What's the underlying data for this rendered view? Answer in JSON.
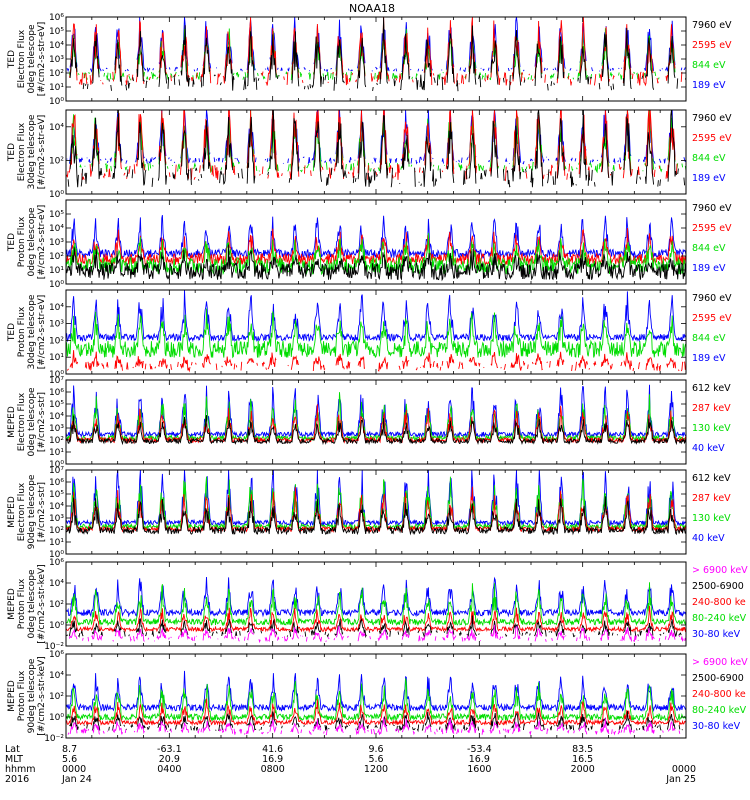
{
  "title": "NOAA18",
  "chart_data": [
    {
      "type": "line",
      "ylabel": [
        "TED",
        "Electron Flux",
        "0deg telescope",
        "[#/cm2-s-str-eV]"
      ],
      "ylim": [
        1,
        1000000
      ],
      "log": true,
      "yticks": [
        {
          "v": 1,
          "t": "10⁰"
        },
        {
          "v": 10,
          "t": "10¹"
        },
        {
          "v": 100,
          "t": "10²"
        },
        {
          "v": 1000,
          "t": "10³"
        },
        {
          "v": 10000,
          "t": "10⁴"
        },
        {
          "v": 100000,
          "t": "10⁵"
        },
        {
          "v": 1000000,
          "t": "10⁶"
        }
      ],
      "legend": [
        {
          "label": "7960 eV",
          "color": "#000000"
        },
        {
          "label": "2595 eV",
          "color": "#ff0000"
        },
        {
          "label": "844 eV",
          "color": "#00dd00"
        },
        {
          "label": "189 eV",
          "color": "#0000ff"
        }
      ],
      "series_style": [
        {
          "color": "#0000ff",
          "base": 180,
          "noise": 0.15,
          "peak": 3,
          "sparse": true
        },
        {
          "color": "#00dd00",
          "base": 60,
          "noise": 0.3,
          "peak": 2.5,
          "sparse": true
        },
        {
          "color": "#ff0000",
          "base": 40,
          "noise": 0.5,
          "peak": 3.5,
          "sparse": true
        },
        {
          "color": "#000000",
          "base": 20,
          "noise": 0.6,
          "peak": 3,
          "sparse": true
        }
      ]
    },
    {
      "type": "line",
      "ylabel": [
        "TED",
        "Electron Flux",
        "30deg telescope",
        "[#/cm2-s-str-eV]"
      ],
      "ylim": [
        1,
        100000
      ],
      "log": true,
      "yticks": [
        {
          "v": 1,
          "t": "10⁰"
        },
        {
          "v": 100,
          "t": "10²"
        },
        {
          "v": 10000,
          "t": "10⁴"
        }
      ],
      "legend": [
        {
          "label": "7960 eV",
          "color": "#000000"
        },
        {
          "label": "2595 eV",
          "color": "#ff0000"
        },
        {
          "label": "844 eV",
          "color": "#00dd00"
        },
        {
          "label": "189 eV",
          "color": "#0000ff"
        }
      ],
      "series_style": [
        {
          "color": "#0000ff",
          "base": 100,
          "noise": 0.2,
          "peak": 2.5,
          "sparse": true
        },
        {
          "color": "#00dd00",
          "base": 40,
          "noise": 0.3,
          "peak": 2.5,
          "sparse": true
        },
        {
          "color": "#ff0000",
          "base": 20,
          "noise": 0.5,
          "peak": 3.5,
          "sparse": true
        },
        {
          "color": "#000000",
          "base": 10,
          "noise": 0.6,
          "peak": 3,
          "sparse": true
        }
      ]
    },
    {
      "type": "line",
      "ylabel": [
        "TED",
        "Proton Flux",
        "0deg telescope",
        "[#/cm2-s-str-eV]"
      ],
      "ylim": [
        1,
        1000000
      ],
      "log": true,
      "yticks": [
        {
          "v": 1,
          "t": "10⁰"
        },
        {
          "v": 10,
          "t": "10¹"
        },
        {
          "v": 100,
          "t": "10²"
        },
        {
          "v": 1000,
          "t": "10³"
        },
        {
          "v": 10000,
          "t": "10⁴"
        },
        {
          "v": 100000,
          "t": "10⁵"
        }
      ],
      "legend": [
        {
          "label": "7960 eV",
          "color": "#000000"
        },
        {
          "label": "2595 eV",
          "color": "#ff0000"
        },
        {
          "label": "844 eV",
          "color": "#00dd00"
        },
        {
          "label": "189 eV",
          "color": "#0000ff"
        }
      ],
      "series_style": [
        {
          "color": "#0000ff",
          "base": 150,
          "noise": 0.3,
          "peak": 2,
          "sparse": false
        },
        {
          "color": "#ff0000",
          "base": 60,
          "noise": 0.4,
          "peak": 1.5,
          "sparse": false
        },
        {
          "color": "#00dd00",
          "base": 20,
          "noise": 0.6,
          "peak": 1.5,
          "sparse": false
        },
        {
          "color": "#000000",
          "base": 8,
          "noise": 0.6,
          "peak": 1,
          "sparse": false
        }
      ]
    },
    {
      "type": "line",
      "ylabel": [
        "TED",
        "Proton Flux",
        "30deg telescope",
        "[#/cm2-s-str-eV]"
      ],
      "ylim": [
        1,
        100000
      ],
      "log": true,
      "yticks": [
        {
          "v": 1,
          "t": "10⁰"
        },
        {
          "v": 10,
          "t": "10¹"
        },
        {
          "v": 100,
          "t": "10²"
        },
        {
          "v": 1000,
          "t": "10³"
        },
        {
          "v": 10000,
          "t": "10⁴"
        }
      ],
      "legend": [
        {
          "label": "7960 eV",
          "color": "#000000"
        },
        {
          "label": "2595 eV",
          "color": "#ff0000"
        },
        {
          "label": "844 eV",
          "color": "#00dd00"
        },
        {
          "label": "189 eV",
          "color": "#0000ff"
        }
      ],
      "series_style": [
        {
          "color": "#0000ff",
          "base": 150,
          "noise": 0.2,
          "peak": 2,
          "sparse": false
        },
        {
          "color": "#00dd00",
          "base": 30,
          "noise": 0.5,
          "peak": 1.5,
          "sparse": false
        },
        {
          "color": "#ff0000",
          "base": 3,
          "noise": 0.3,
          "peak": 0.5,
          "sparse": true
        }
      ]
    },
    {
      "type": "line",
      "ylabel": [
        "MEPED",
        "Electron Flux",
        "0deg telescope",
        "[#/cm2-s-str]"
      ],
      "ylim": [
        1,
        10000000
      ],
      "log": true,
      "yticks": [
        {
          "v": 1,
          "t": "10⁰"
        },
        {
          "v": 10,
          "t": "10¹"
        },
        {
          "v": 100,
          "t": "10²"
        },
        {
          "v": 1000,
          "t": "10³"
        },
        {
          "v": 10000,
          "t": "10⁴"
        },
        {
          "v": 100000,
          "t": "10⁵"
        },
        {
          "v": 1000000,
          "t": "10⁶"
        },
        {
          "v": 10000000,
          "t": "10⁷"
        }
      ],
      "legend": [
        {
          "label": "612 keV",
          "color": "#000000"
        },
        {
          "label": "287 keV",
          "color": "#ff0000"
        },
        {
          "label": "130 keV",
          "color": "#00dd00"
        },
        {
          "label": "40 keV",
          "color": "#0000ff"
        }
      ],
      "series_style": [
        {
          "color": "#0000ff",
          "base": 300,
          "noise": 0.2,
          "peak": 3,
          "sparse": false
        },
        {
          "color": "#00dd00",
          "base": 150,
          "noise": 0.2,
          "peak": 2.5,
          "sparse": false
        },
        {
          "color": "#ff0000",
          "base": 100,
          "noise": 0.2,
          "peak": 2,
          "sparse": false
        },
        {
          "color": "#000000",
          "base": 80,
          "noise": 0.2,
          "peak": 1.5,
          "sparse": false
        }
      ]
    },
    {
      "type": "line",
      "ylabel": [
        "MEPED",
        "Electron Flux",
        "90deg telescope",
        "[#/cm2-s-str]"
      ],
      "ylim": [
        1,
        10000000
      ],
      "log": true,
      "yticks": [
        {
          "v": 1,
          "t": "10⁰"
        },
        {
          "v": 10,
          "t": "10¹"
        },
        {
          "v": 100,
          "t": "10²"
        },
        {
          "v": 1000,
          "t": "10³"
        },
        {
          "v": 10000,
          "t": "10⁴"
        },
        {
          "v": 100000,
          "t": "10⁵"
        },
        {
          "v": 1000000,
          "t": "10⁶"
        },
        {
          "v": 10000000,
          "t": "10⁷"
        }
      ],
      "legend": [
        {
          "label": "612 keV",
          "color": "#000000"
        },
        {
          "label": "287 keV",
          "color": "#ff0000"
        },
        {
          "label": "130 keV",
          "color": "#00dd00"
        },
        {
          "label": "40 keV",
          "color": "#0000ff"
        }
      ],
      "series_style": [
        {
          "color": "#0000ff",
          "base": 400,
          "noise": 0.2,
          "peak": 3.5,
          "sparse": false
        },
        {
          "color": "#00dd00",
          "base": 200,
          "noise": 0.2,
          "peak": 3,
          "sparse": false
        },
        {
          "color": "#ff0000",
          "base": 120,
          "noise": 0.2,
          "peak": 2.5,
          "sparse": false
        },
        {
          "color": "#000000",
          "base": 90,
          "noise": 0.3,
          "peak": 2,
          "sparse": false
        }
      ]
    },
    {
      "type": "line",
      "ylabel": [
        "MEPED",
        "Proton Flux",
        "0deg telescope",
        "[#/cm2-s-str-keV]"
      ],
      "ylim": [
        0.01,
        1000000
      ],
      "log": true,
      "yticks": [
        {
          "v": 0.01,
          "t": "10⁻²"
        },
        {
          "v": 1,
          "t": "10⁰"
        },
        {
          "v": 100,
          "t": "10²"
        },
        {
          "v": 10000,
          "t": "10⁴"
        },
        {
          "v": 1000000,
          "t": "10⁶"
        }
      ],
      "legend": [
        {
          "label": "> 6900 keV",
          "color": "#ff00ff"
        },
        {
          "label": "2500-6900",
          "color": "#000000"
        },
        {
          "label": "240-800 ke",
          "color": "#ff0000"
        },
        {
          "label": "80-240 keV",
          "color": "#00dd00"
        },
        {
          "label": "30-80 keV",
          "color": "#0000ff"
        }
      ],
      "series_style": [
        {
          "color": "#0000ff",
          "base": 15,
          "noise": 0.3,
          "peak": 2.5,
          "sparse": false
        },
        {
          "color": "#00dd00",
          "base": 2,
          "noise": 0.3,
          "peak": 2.5,
          "sparse": false
        },
        {
          "color": "#ff0000",
          "base": 0.4,
          "noise": 0.2,
          "peak": 1.5,
          "sparse": false
        },
        {
          "color": "#000000",
          "base": 0.15,
          "noise": 0.3,
          "peak": 1,
          "sparse": true
        },
        {
          "color": "#ff00ff",
          "base": 0.05,
          "noise": 0.3,
          "peak": 0.8,
          "sparse": true
        }
      ]
    },
    {
      "type": "line",
      "ylabel": [
        "MEPED",
        "Proton Flux",
        "90deg telescope",
        "[#/cm2-s-str-keV]"
      ],
      "ylim": [
        0.01,
        1000000
      ],
      "log": true,
      "yticks": [
        {
          "v": 0.01,
          "t": "10⁻²"
        },
        {
          "v": 1,
          "t": "10⁰"
        },
        {
          "v": 100,
          "t": "10²"
        },
        {
          "v": 10000,
          "t": "10⁴"
        },
        {
          "v": 1000000,
          "t": "10⁶"
        }
      ],
      "legend": [
        {
          "label": "> 6900 keV",
          "color": "#ff00ff"
        },
        {
          "label": "2500-6900",
          "color": "#000000"
        },
        {
          "label": "240-800 ke",
          "color": "#ff0000"
        },
        {
          "label": "80-240 keV",
          "color": "#00dd00"
        },
        {
          "label": "30-80 keV",
          "color": "#0000ff"
        }
      ],
      "series_style": [
        {
          "color": "#0000ff",
          "base": 8,
          "noise": 0.3,
          "peak": 2.5,
          "sparse": false
        },
        {
          "color": "#00dd00",
          "base": 1,
          "noise": 0.3,
          "peak": 2.5,
          "sparse": false
        },
        {
          "color": "#ff0000",
          "base": 0.3,
          "noise": 0.2,
          "peak": 1.5,
          "sparse": false
        },
        {
          "color": "#000000",
          "base": 0.1,
          "noise": 0.3,
          "peak": 1,
          "sparse": true
        },
        {
          "color": "#ff00ff",
          "base": 0.04,
          "noise": 0.3,
          "peak": 0.8,
          "sparse": true
        }
      ]
    }
  ],
  "xaxis": {
    "row_labels": [
      "Lat",
      "MLT",
      "hhmm",
      "2016"
    ],
    "ticks": [
      {
        "lat": "8.7",
        "mlt": "5.6",
        "hhmm": "0000",
        "date": "Jan 24"
      },
      {
        "lat": "-63.1",
        "mlt": "20.9",
        "hhmm": "0400",
        "date": ""
      },
      {
        "lat": "41.6",
        "mlt": "16.9",
        "hhmm": "0800",
        "date": ""
      },
      {
        "lat": "9.6",
        "mlt": "5.6",
        "hhmm": "1200",
        "date": ""
      },
      {
        "lat": "-53.4",
        "mlt": "16.9",
        "hhmm": "1600",
        "date": ""
      },
      {
        "lat": "83.5",
        "mlt": "16.5",
        "hhmm": "2000",
        "date": ""
      },
      {
        "lat": "",
        "mlt": "",
        "hhmm": "0000",
        "date": "Jan 25"
      }
    ]
  }
}
